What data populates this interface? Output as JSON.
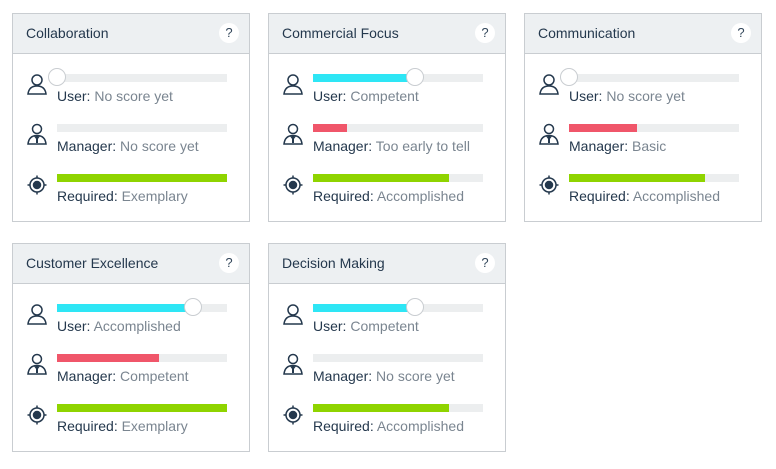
{
  "colors": {
    "user": "#2ee6f5",
    "manager": "#f0566a",
    "required": "#8fd400",
    "track": "#eceeef"
  },
  "labels": {
    "user": "User:",
    "manager": "Manager:",
    "required": "Required:"
  },
  "help_label": "?",
  "cards": [
    {
      "title": "Collaboration",
      "user": {
        "value": "No score yet",
        "pct": 0
      },
      "manager": {
        "value": "No score yet",
        "pct": 0
      },
      "required": {
        "value": "Exemplary",
        "pct": 100
      }
    },
    {
      "title": "Commercial Focus",
      "user": {
        "value": "Competent",
        "pct": 60
      },
      "manager": {
        "value": "Too early to tell",
        "pct": 20
      },
      "required": {
        "value": "Accomplished",
        "pct": 80
      }
    },
    {
      "title": "Communication",
      "user": {
        "value": "No score yet",
        "pct": 0
      },
      "manager": {
        "value": "Basic",
        "pct": 40
      },
      "required": {
        "value": "Accomplished",
        "pct": 80
      }
    },
    {
      "title": "Customer Excellence",
      "user": {
        "value": "Accomplished",
        "pct": 80
      },
      "manager": {
        "value": "Competent",
        "pct": 60
      },
      "required": {
        "value": "Exemplary",
        "pct": 100
      }
    },
    {
      "title": "Decision Making",
      "user": {
        "value": "Competent",
        "pct": 60
      },
      "manager": {
        "value": "No score yet",
        "pct": 0
      },
      "required": {
        "value": "Accomplished",
        "pct": 80
      }
    }
  ]
}
